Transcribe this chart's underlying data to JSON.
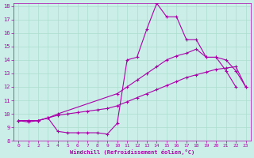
{
  "xlabel": "Windchill (Refroidissement éolien,°C)",
  "bg_color": "#cceee8",
  "line_color": "#aa00aa",
  "xlim": [
    -0.5,
    23.5
  ],
  "ylim": [
    8,
    18.2
  ],
  "yticks": [
    8,
    9,
    10,
    11,
    12,
    13,
    14,
    15,
    16,
    17,
    18
  ],
  "xticks": [
    0,
    1,
    2,
    3,
    4,
    5,
    6,
    7,
    8,
    9,
    10,
    11,
    12,
    13,
    14,
    15,
    16,
    17,
    18,
    19,
    20,
    21,
    22,
    23
  ],
  "line1_x": [
    0,
    1,
    2,
    3,
    4,
    5,
    6,
    7,
    8,
    9,
    10,
    11,
    12,
    13,
    14,
    15,
    16,
    17,
    18,
    19,
    20,
    21,
    22
  ],
  "line1_y": [
    9.5,
    9.4,
    9.5,
    9.7,
    8.7,
    8.6,
    8.6,
    8.6,
    8.6,
    8.5,
    9.3,
    14.0,
    14.2,
    16.3,
    18.2,
    17.2,
    17.2,
    15.5,
    15.5,
    14.2,
    14.2,
    13.2,
    12.0
  ],
  "line2_x": [
    0,
    1,
    2,
    3,
    4,
    10,
    11,
    12,
    13,
    14,
    15,
    16,
    17,
    18,
    19,
    20,
    21,
    22,
    23
  ],
  "line2_y": [
    9.5,
    9.5,
    9.5,
    9.7,
    10.0,
    11.5,
    12.0,
    12.5,
    13.0,
    13.5,
    14.0,
    14.3,
    14.5,
    14.8,
    14.2,
    14.2,
    14.0,
    13.2,
    12.0
  ],
  "line3_x": [
    0,
    1,
    2,
    3,
    4,
    5,
    6,
    7,
    8,
    9,
    10,
    11,
    12,
    13,
    14,
    15,
    16,
    17,
    18,
    19,
    20,
    21,
    22,
    23
  ],
  "line3_y": [
    9.5,
    9.5,
    9.5,
    9.7,
    9.9,
    10.0,
    10.1,
    10.2,
    10.3,
    10.4,
    10.6,
    10.9,
    11.2,
    11.5,
    11.8,
    12.1,
    12.4,
    12.7,
    12.9,
    13.1,
    13.3,
    13.4,
    13.5,
    12.0
  ]
}
